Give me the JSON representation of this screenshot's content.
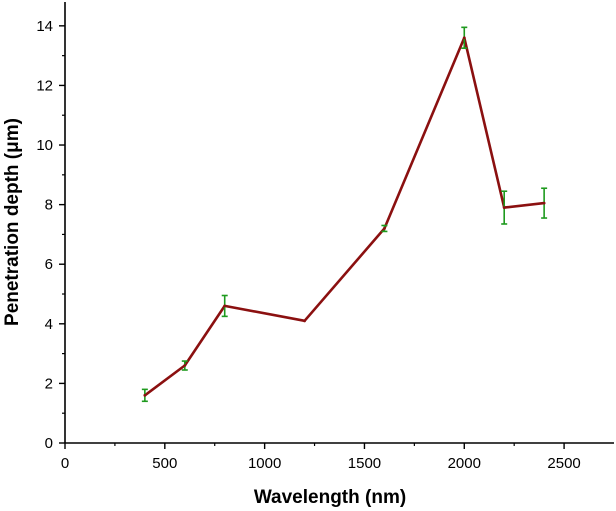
{
  "chart_data": {
    "type": "line",
    "title": "",
    "xlabel": "Wavelength (nm)",
    "ylabel": "Penetration depth (μm)",
    "xlim": [
      0,
      2750
    ],
    "ylim": [
      0,
      14.8
    ],
    "xticks": [
      0,
      500,
      1000,
      1500,
      2000,
      2500
    ],
    "yticks": [
      0,
      2,
      4,
      6,
      8,
      10,
      12,
      14
    ],
    "grid": false,
    "legend": "none",
    "line_color": "#8b1010",
    "error_bar_color": "#1e9a1e",
    "series": [
      {
        "x": [
          400,
          600,
          800,
          1200,
          1600,
          2000,
          2200,
          2400
        ],
        "y": [
          1.6,
          2.6,
          4.6,
          4.1,
          7.2,
          13.6,
          7.9,
          8.05
        ],
        "yerr": [
          0.2,
          0.15,
          0.35,
          0.0,
          0.1,
          0.35,
          0.55,
          0.5
        ]
      }
    ]
  }
}
